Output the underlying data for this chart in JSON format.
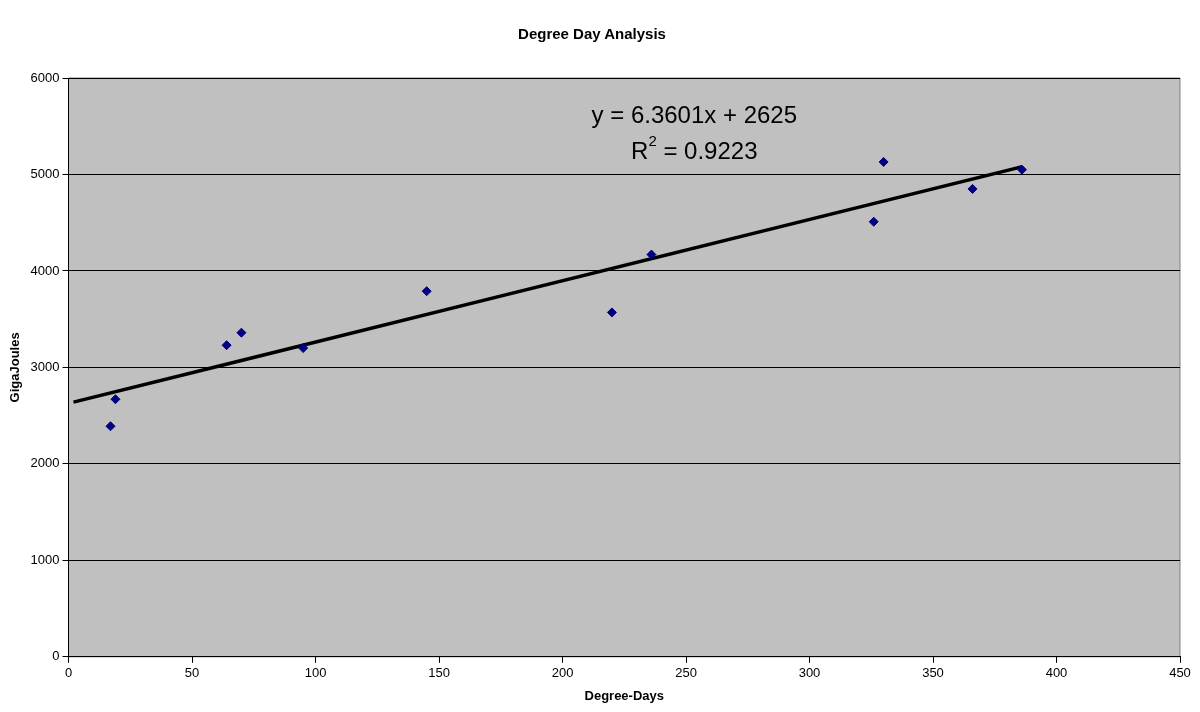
{
  "chart_data": {
    "type": "scatter",
    "title": "Degree Day Analysis",
    "xlabel": "Degree-Days",
    "ylabel": "GigaJoules",
    "x": [
      17,
      19,
      64,
      70,
      95,
      145,
      220,
      236,
      326,
      330,
      366,
      386
    ],
    "series": [
      {
        "type": "scatter",
        "color": "#000080",
        "marker": "diamond",
        "values": [
          2390,
          2670,
          3230,
          3360,
          3200,
          3790,
          3570,
          4170,
          4510,
          5130,
          4850,
          5050
        ]
      },
      {
        "type": "line",
        "color": "#000000",
        "marker": "none",
        "line_style": "solid",
        "x": [
          2,
          386
        ],
        "values": [
          2640,
          5080
        ]
      }
    ],
    "annotations": [
      "y = 6.3601x + 2625",
      "R$^{2}$ = 0.9223"
    ],
    "xlim": [
      0,
      450
    ],
    "xticks": [
      0,
      50,
      100,
      150,
      200,
      250,
      300,
      350,
      400,
      450
    ],
    "ylim": [
      0,
      6000
    ],
    "yticks": [
      0,
      1000,
      2000,
      3000,
      4000,
      5000,
      6000
    ],
    "grid": "y",
    "legend": false
  }
}
